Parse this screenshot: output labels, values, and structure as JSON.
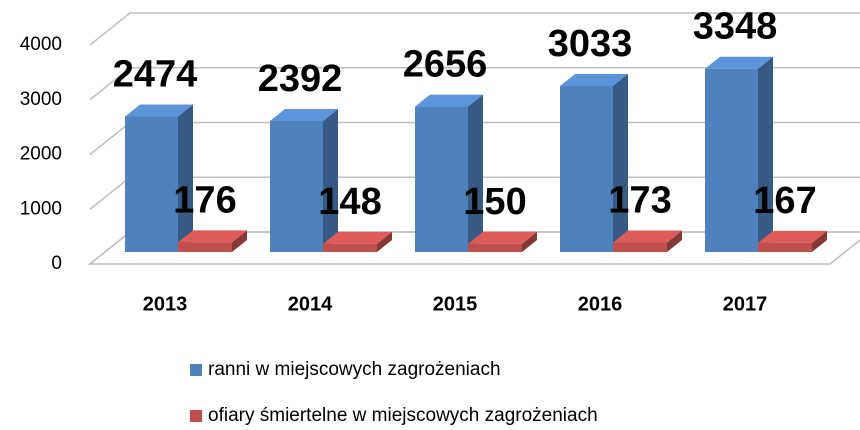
{
  "chart_data": {
    "type": "bar3d",
    "categories": [
      "2013",
      "2014",
      "2015",
      "2016",
      "2017"
    ],
    "series": [
      {
        "name": "ranni w miejscowych zagrożeniach",
        "color": "#4f81bd",
        "values": [
          2474,
          2392,
          2656,
          3033,
          3348
        ]
      },
      {
        "name": "ofiary śmiertelne w miejscowych zagrożeniach",
        "color": "#c0504d",
        "values": [
          176,
          148,
          150,
          173,
          167
        ]
      }
    ],
    "ylim": [
      0,
      4000
    ],
    "yticks": [
      0,
      1000,
      2000,
      3000,
      4000
    ],
    "grid": true,
    "legend": "bottom"
  }
}
